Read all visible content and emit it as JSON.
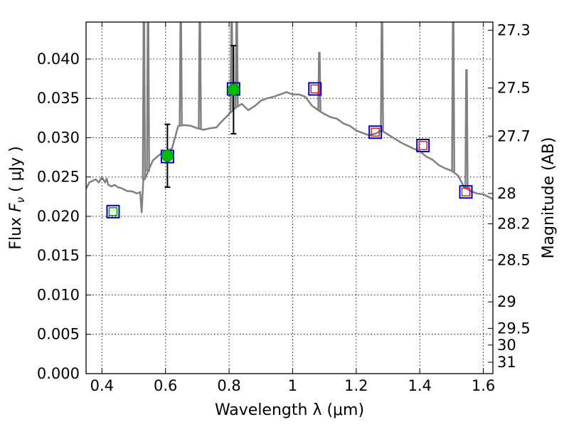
{
  "chart_data": {
    "type": "scatter",
    "title": "",
    "xlabel": "Wavelength  λ (μm)",
    "ylabel_prefix": "Flux  ",
    "ylabel_symbol": "F",
    "ylabel_subscript": "ν",
    "ylabel_unit": "  ( μJy )",
    "y2label": "Magnitude (AB)",
    "xlim": [
      0.35,
      1.63
    ],
    "ylim": [
      0.0,
      0.0447
    ],
    "grid": true,
    "xticks": [
      0.4,
      0.6,
      0.8,
      1.0,
      1.2,
      1.4,
      1.6
    ],
    "xtick_labels": [
      "0.4",
      "0.6",
      "0.8",
      "1",
      "1.2",
      "1.4",
      "1.6"
    ],
    "yticks": [
      0.0,
      0.005,
      0.01,
      0.015,
      0.02,
      0.025,
      0.03,
      0.035,
      0.04
    ],
    "ytick_labels": [
      "0.000",
      "0.005",
      "0.010",
      "0.015",
      "0.020",
      "0.025",
      "0.030",
      "0.035",
      "0.040"
    ],
    "mag_ticks": [
      27.3,
      27.5,
      27.7,
      28,
      28.2,
      28.5,
      29,
      29.5,
      30,
      31
    ],
    "mag_tick_labels": [
      "27.3",
      "27.5",
      "27.7",
      "28",
      "28.2",
      "28.5",
      "29",
      "29.5",
      "30",
      "31"
    ],
    "colors": {
      "model": "#808080",
      "observed": "#00bb00",
      "errorbar": "#000000",
      "band_box": "#0000cc",
      "model_flux_inner": "#dd0000",
      "model_flux_inner_first": "#008800"
    },
    "series": [
      {
        "name": "model spectrum",
        "kind": "line",
        "x": [
          0.35,
          0.36,
          0.38,
          0.39,
          0.4,
          0.41,
          0.415,
          0.42,
          0.43,
          0.44,
          0.45,
          0.46,
          0.47,
          0.48,
          0.49,
          0.5,
          0.51,
          0.52,
          0.525,
          0.53,
          0.54,
          0.55,
          0.56,
          0.58,
          0.6,
          0.62,
          0.64,
          0.66,
          0.68,
          0.7,
          0.72,
          0.74,
          0.76,
          0.78,
          0.8,
          0.82,
          0.84,
          0.86,
          0.88,
          0.9,
          0.92,
          0.94,
          0.96,
          0.98,
          1.0,
          1.02,
          1.04,
          1.06,
          1.08,
          1.1,
          1.12,
          1.14,
          1.16,
          1.18,
          1.2,
          1.22,
          1.24,
          1.26,
          1.28,
          1.3,
          1.32,
          1.34,
          1.36,
          1.38,
          1.4,
          1.42,
          1.44,
          1.46,
          1.48,
          1.5,
          1.52,
          1.54,
          1.56,
          1.58,
          1.6,
          1.63
        ],
        "y": [
          0.0235,
          0.0243,
          0.0247,
          0.0243,
          0.025,
          0.0243,
          0.0248,
          0.024,
          0.0238,
          0.024,
          0.0237,
          0.0236,
          0.0234,
          0.0232,
          0.0232,
          0.0231,
          0.0229,
          0.0231,
          0.0205,
          0.0245,
          0.0252,
          0.0262,
          0.0271,
          0.0278,
          0.0283,
          0.0286,
          0.0315,
          0.0316,
          0.0315,
          0.0312,
          0.031,
          0.0312,
          0.0313,
          0.0322,
          0.033,
          0.0338,
          0.0343,
          0.0335,
          0.034,
          0.0347,
          0.035,
          0.0352,
          0.0355,
          0.0358,
          0.0355,
          0.0355,
          0.0352,
          0.0341,
          0.0335,
          0.033,
          0.0326,
          0.0324,
          0.0318,
          0.0315,
          0.0309,
          0.0306,
          0.0303,
          0.0305,
          0.0309,
          0.0304,
          0.0299,
          0.0294,
          0.029,
          0.0286,
          0.0283,
          0.0276,
          0.0272,
          0.0265,
          0.0261,
          0.0258,
          0.0252,
          0.0237,
          0.0232,
          0.0229,
          0.0228,
          0.0222
        ]
      },
      {
        "name": "emission lines",
        "kind": "spike",
        "x": [
          0.532,
          0.545,
          0.648,
          0.708,
          0.808,
          0.824,
          1.084,
          1.281,
          1.505,
          1.547
        ],
        "y": [
          0.0447,
          0.0447,
          0.0447,
          0.0447,
          0.0447,
          0.0447,
          0.0408,
          0.0447,
          0.0447,
          0.0386
        ]
      },
      {
        "name": "observed flux",
        "kind": "points",
        "x": [
          0.606,
          0.814
        ],
        "y": [
          0.0277,
          0.0361
        ],
        "yerr": [
          0.004,
          0.0056
        ]
      },
      {
        "name": "band-averaged flux",
        "kind": "boxes",
        "x": [
          0.435,
          0.606,
          0.814,
          1.07,
          1.26,
          1.41,
          1.545
        ],
        "y": [
          0.0206,
          0.0276,
          0.0362,
          0.0362,
          0.0307,
          0.029,
          0.0231
        ]
      },
      {
        "name": "model flux",
        "kind": "inner-boxes",
        "x": [
          0.435,
          1.07,
          1.26,
          1.41,
          1.545
        ],
        "y": [
          0.0206,
          0.0362,
          0.0307,
          0.029,
          0.0231
        ]
      }
    ]
  }
}
